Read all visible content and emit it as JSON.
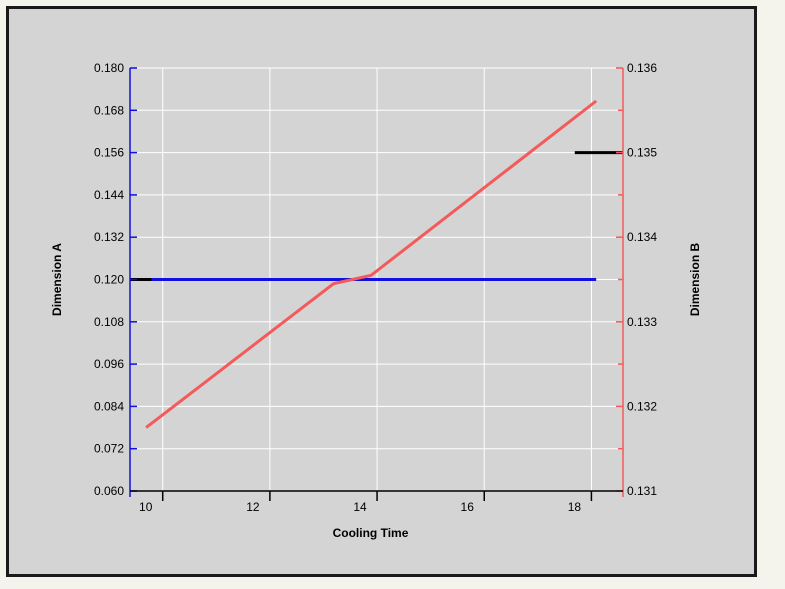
{
  "chart_data": {
    "type": "line",
    "xlabel": "Cooling Time",
    "ylabel_left": "Dimension A",
    "ylabel_right": "Dimension B",
    "xlim": [
      9.8,
      19.0
    ],
    "ylim_left": [
      0.06,
      0.18
    ],
    "ylim_right": [
      0.131,
      0.136
    ],
    "x_ticks": [
      10,
      12,
      14,
      16,
      18
    ],
    "y_left_ticks": [
      "0.060",
      "0.072",
      "0.084",
      "0.096",
      "0.108",
      "0.120",
      "0.132",
      "0.144",
      "0.156",
      "0.168",
      "0.180"
    ],
    "y_right_ticks": [
      "0.131",
      "0.132",
      "0.133",
      "0.134",
      "0.135",
      "0.136"
    ],
    "grid": true,
    "series": [
      {
        "axis": "left",
        "color": "#1010e0",
        "x": [
          10.1,
          18.5
        ],
        "y": [
          0.12,
          0.12
        ]
      },
      {
        "axis": "right",
        "color": "#f45a5a",
        "x": [
          10.1,
          13.6,
          14.3,
          18.5
        ],
        "y": [
          0.13175,
          0.13345,
          0.13355,
          0.13561
        ]
      }
    ],
    "markers": [
      {
        "axis": "left",
        "color": "#000000",
        "x": [
          9.8,
          10.2
        ],
        "y": [
          0.12,
          0.12
        ]
      },
      {
        "axis": "right",
        "color": "#000000",
        "x": [
          18.1,
          19.0
        ],
        "y": [
          0.135,
          0.135
        ]
      }
    ],
    "colors": {
      "left_axis": "#1010e0",
      "right_axis": "#f45a5a",
      "grid": "#ffffff"
    }
  }
}
